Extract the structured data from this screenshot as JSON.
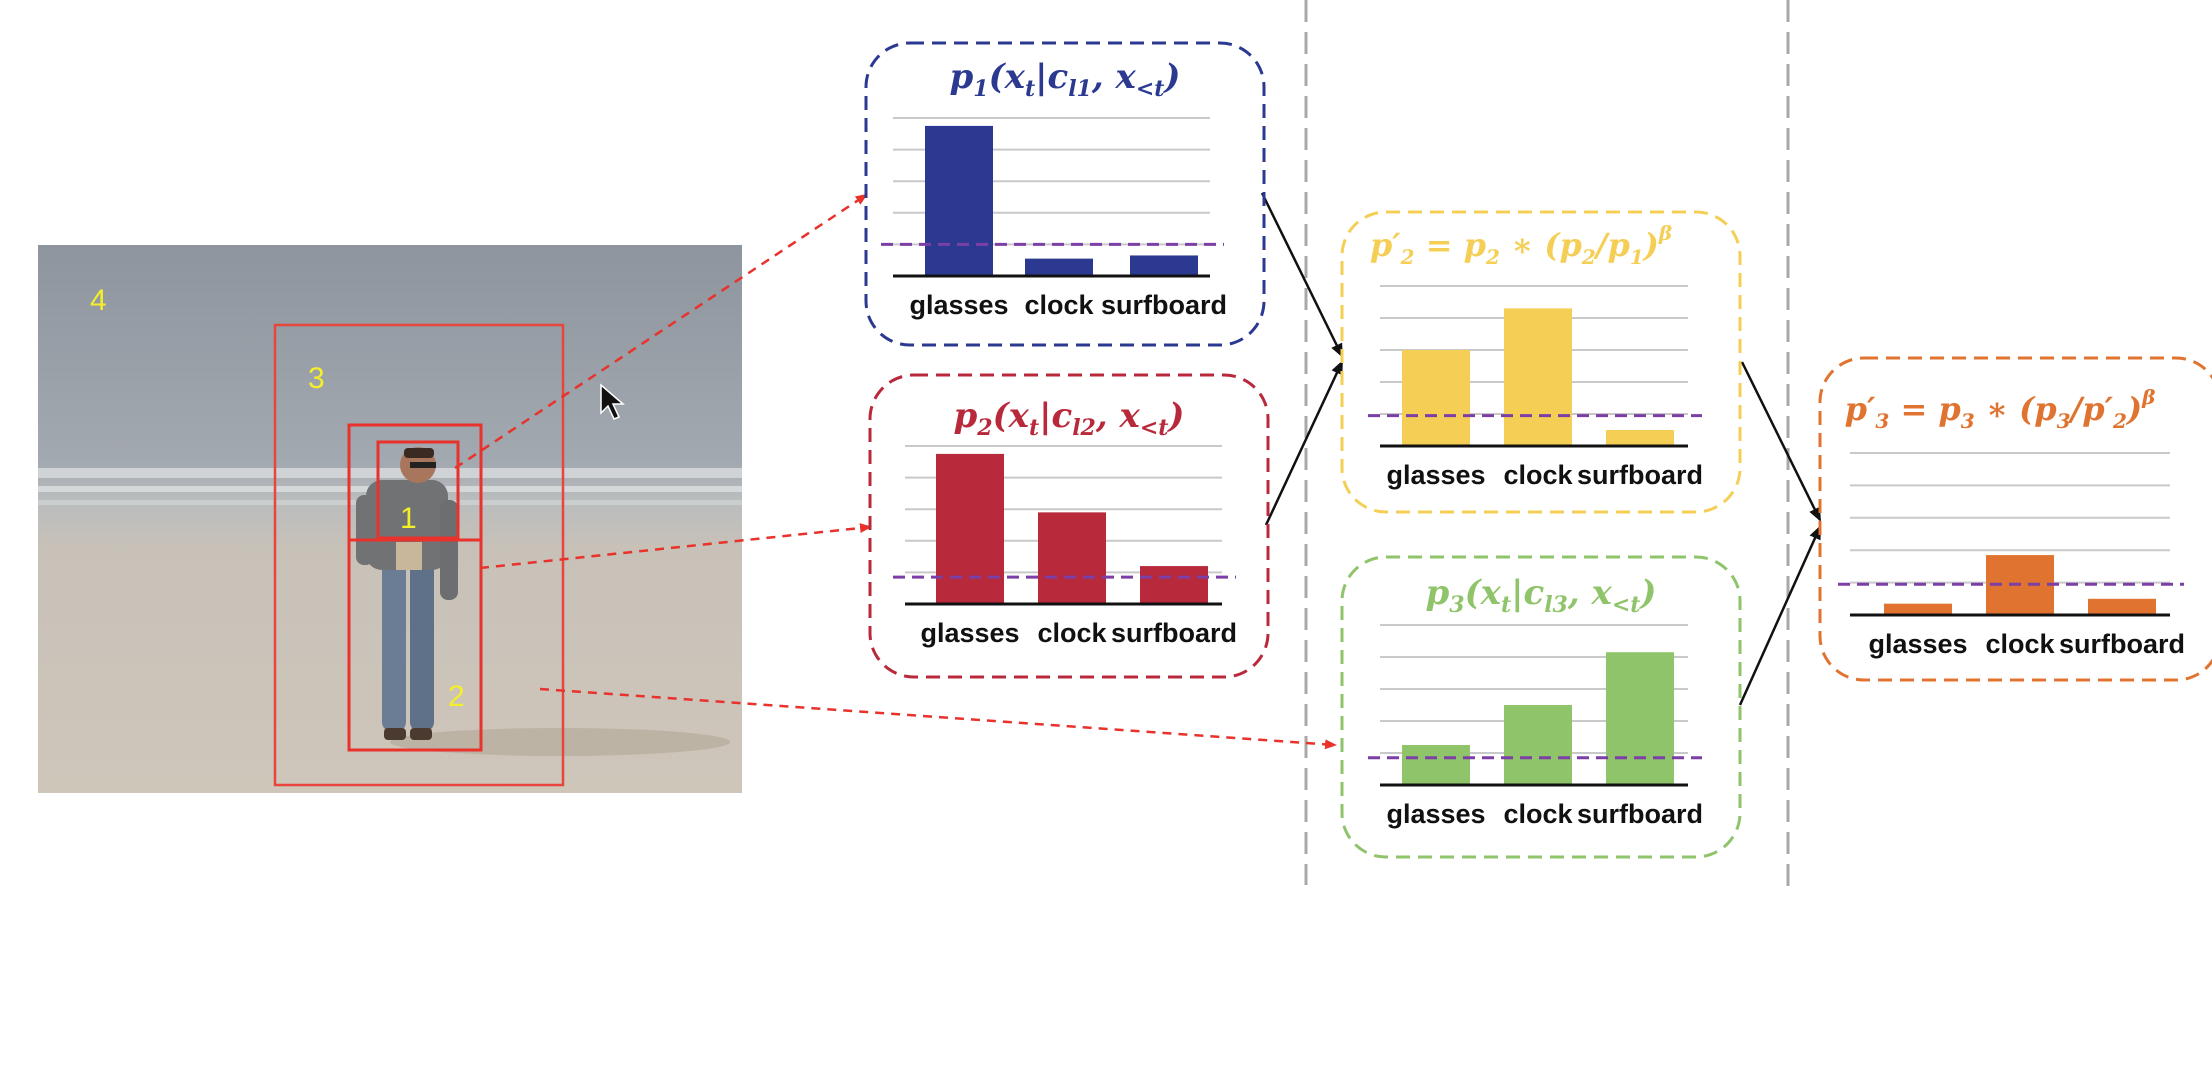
{
  "photo": {
    "description_free": true,
    "regions": [
      {
        "id": "region-1",
        "label": "1"
      },
      {
        "id": "region-2",
        "label": "2"
      },
      {
        "id": "region-3",
        "label": "3"
      },
      {
        "id": "region-4",
        "label": "4"
      }
    ]
  },
  "panels": [
    {
      "id": "panel-p1",
      "color": "#2b3990",
      "formula": {
        "base": "p",
        "sub": "1",
        "body": "(x",
        "bodySub": "t",
        "mid": "|c",
        "midSub": "l1",
        "tail": ", x",
        "tailSub": "<t",
        "close": ")"
      },
      "categories": [
        "glasses",
        "clock",
        "surfboard"
      ],
      "values": [
        0.95,
        0.11,
        0.13
      ],
      "threshold": 0.2
    },
    {
      "id": "panel-p2",
      "color": "#b8293b",
      "formula": {
        "base": "p",
        "sub": "2",
        "body": "(x",
        "bodySub": "t",
        "mid": "|c",
        "midSub": "l2",
        "tail": ", x",
        "tailSub": "<t",
        "close": ")"
      },
      "categories": [
        "glasses",
        "clock",
        "surfboard"
      ],
      "values": [
        0.95,
        0.58,
        0.24
      ],
      "threshold": 0.17
    },
    {
      "id": "panel-p3",
      "color": "#8fc46a",
      "formula": {
        "base": "p",
        "sub": "3",
        "body": "(x",
        "bodySub": "t",
        "mid": "|c",
        "midSub": "l3",
        "tail": ", x",
        "tailSub": "<t",
        "close": ")"
      },
      "categories": [
        "glasses",
        "clock",
        "surfboard"
      ],
      "values": [
        0.25,
        0.5,
        0.83
      ],
      "threshold": 0.17
    },
    {
      "id": "panel-p2prime",
      "color": "#f5cf55",
      "formulaText": {
        "lhs": "p′",
        "lhsSub": "2",
        "eq": " = p",
        "eqSub": "2",
        "op": " ∗ (",
        "num": "p",
        "numSub": "2",
        "den": "p",
        "denSub": "1",
        "close": ")",
        "exp": "β"
      },
      "categories": [
        "glasses",
        "clock",
        "surfboard"
      ],
      "values": [
        0.6,
        0.86,
        0.1
      ],
      "threshold": 0.19
    },
    {
      "id": "panel-p3prime",
      "color": "#e0732f",
      "formulaText": {
        "lhs": "p′",
        "lhsSub": "3",
        "eq": " = p",
        "eqSub": "3",
        "op": " ∗ (",
        "num": "p",
        "numSub": "3",
        "den": "p′",
        "denSub": "2",
        "close": ")",
        "exp": "β"
      },
      "categories": [
        "glasses",
        "clock",
        "surfboard"
      ],
      "values": [
        0.07,
        0.37,
        0.1
      ],
      "threshold": 0.19
    }
  ],
  "colors": {
    "arrow_dashed": "#e8322b",
    "arrow_solid": "#111111",
    "threshold_line": "#7b3fa6",
    "grid": "#c9c9c9",
    "divider": "#a8a8a8",
    "region_box": "#e8453c",
    "region_label": "#f5ef2a"
  }
}
